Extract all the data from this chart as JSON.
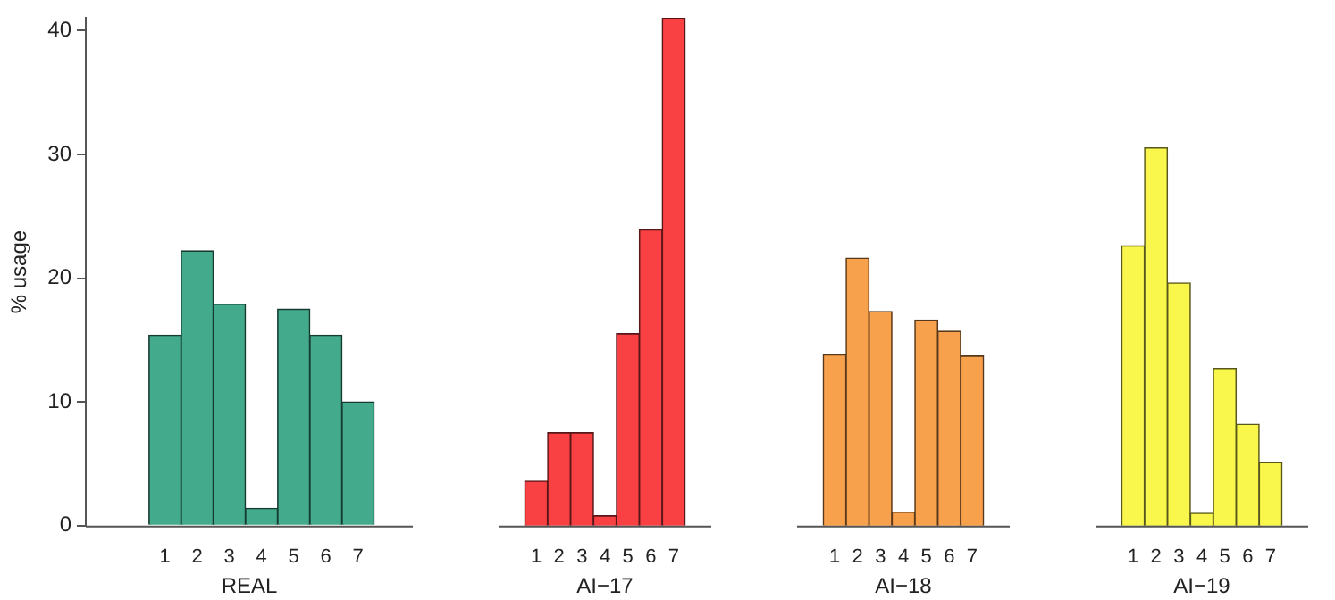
{
  "chart_data": [
    {
      "type": "bar",
      "xlabel": "REAL",
      "ylabel": "% usage",
      "categories": [
        "1",
        "2",
        "3",
        "4",
        "5",
        "6",
        "7"
      ],
      "values": [
        15.4,
        22.2,
        17.9,
        1.4,
        17.5,
        15.4,
        10.0
      ],
      "color": "#43aa8b",
      "ylim": [
        0,
        41
      ],
      "yticks": [
        0,
        10,
        20,
        30,
        40
      ],
      "grid": false
    },
    {
      "type": "bar",
      "xlabel": "AI−17",
      "categories": [
        "1",
        "2",
        "3",
        "4",
        "5",
        "6",
        "7"
      ],
      "values": [
        3.6,
        7.5,
        7.5,
        0.8,
        15.5,
        23.9,
        41.0
      ],
      "color": "#f94144",
      "ylim": [
        0,
        41
      ],
      "yticks": [
        0,
        10,
        20,
        30,
        40
      ],
      "grid": false,
      "tick_labels": "x"
    },
    {
      "type": "bar",
      "xlabel": "AI−18",
      "categories": [
        "1",
        "2",
        "3",
        "4",
        "5",
        "6",
        "7"
      ],
      "values": [
        13.8,
        21.6,
        17.3,
        1.1,
        16.6,
        15.7,
        13.7
      ],
      "color": "#f8a14c",
      "ylim": [
        0,
        40
      ],
      "yticks": [
        0,
        10,
        20,
        30,
        40
      ],
      "grid": false,
      "tick_labels": "x"
    },
    {
      "type": "bar",
      "xlabel": "AI−19",
      "categories": [
        "1",
        "2",
        "3",
        "4",
        "5",
        "6",
        "7"
      ],
      "values": [
        22.6,
        30.5,
        19.6,
        1.0,
        12.7,
        8.2,
        5.1
      ],
      "color": "#f9f74c",
      "ylim": [
        0,
        40
      ],
      "yticks": [
        0,
        10,
        20,
        30,
        40
      ],
      "grid": false,
      "tick_labels": "x"
    }
  ]
}
